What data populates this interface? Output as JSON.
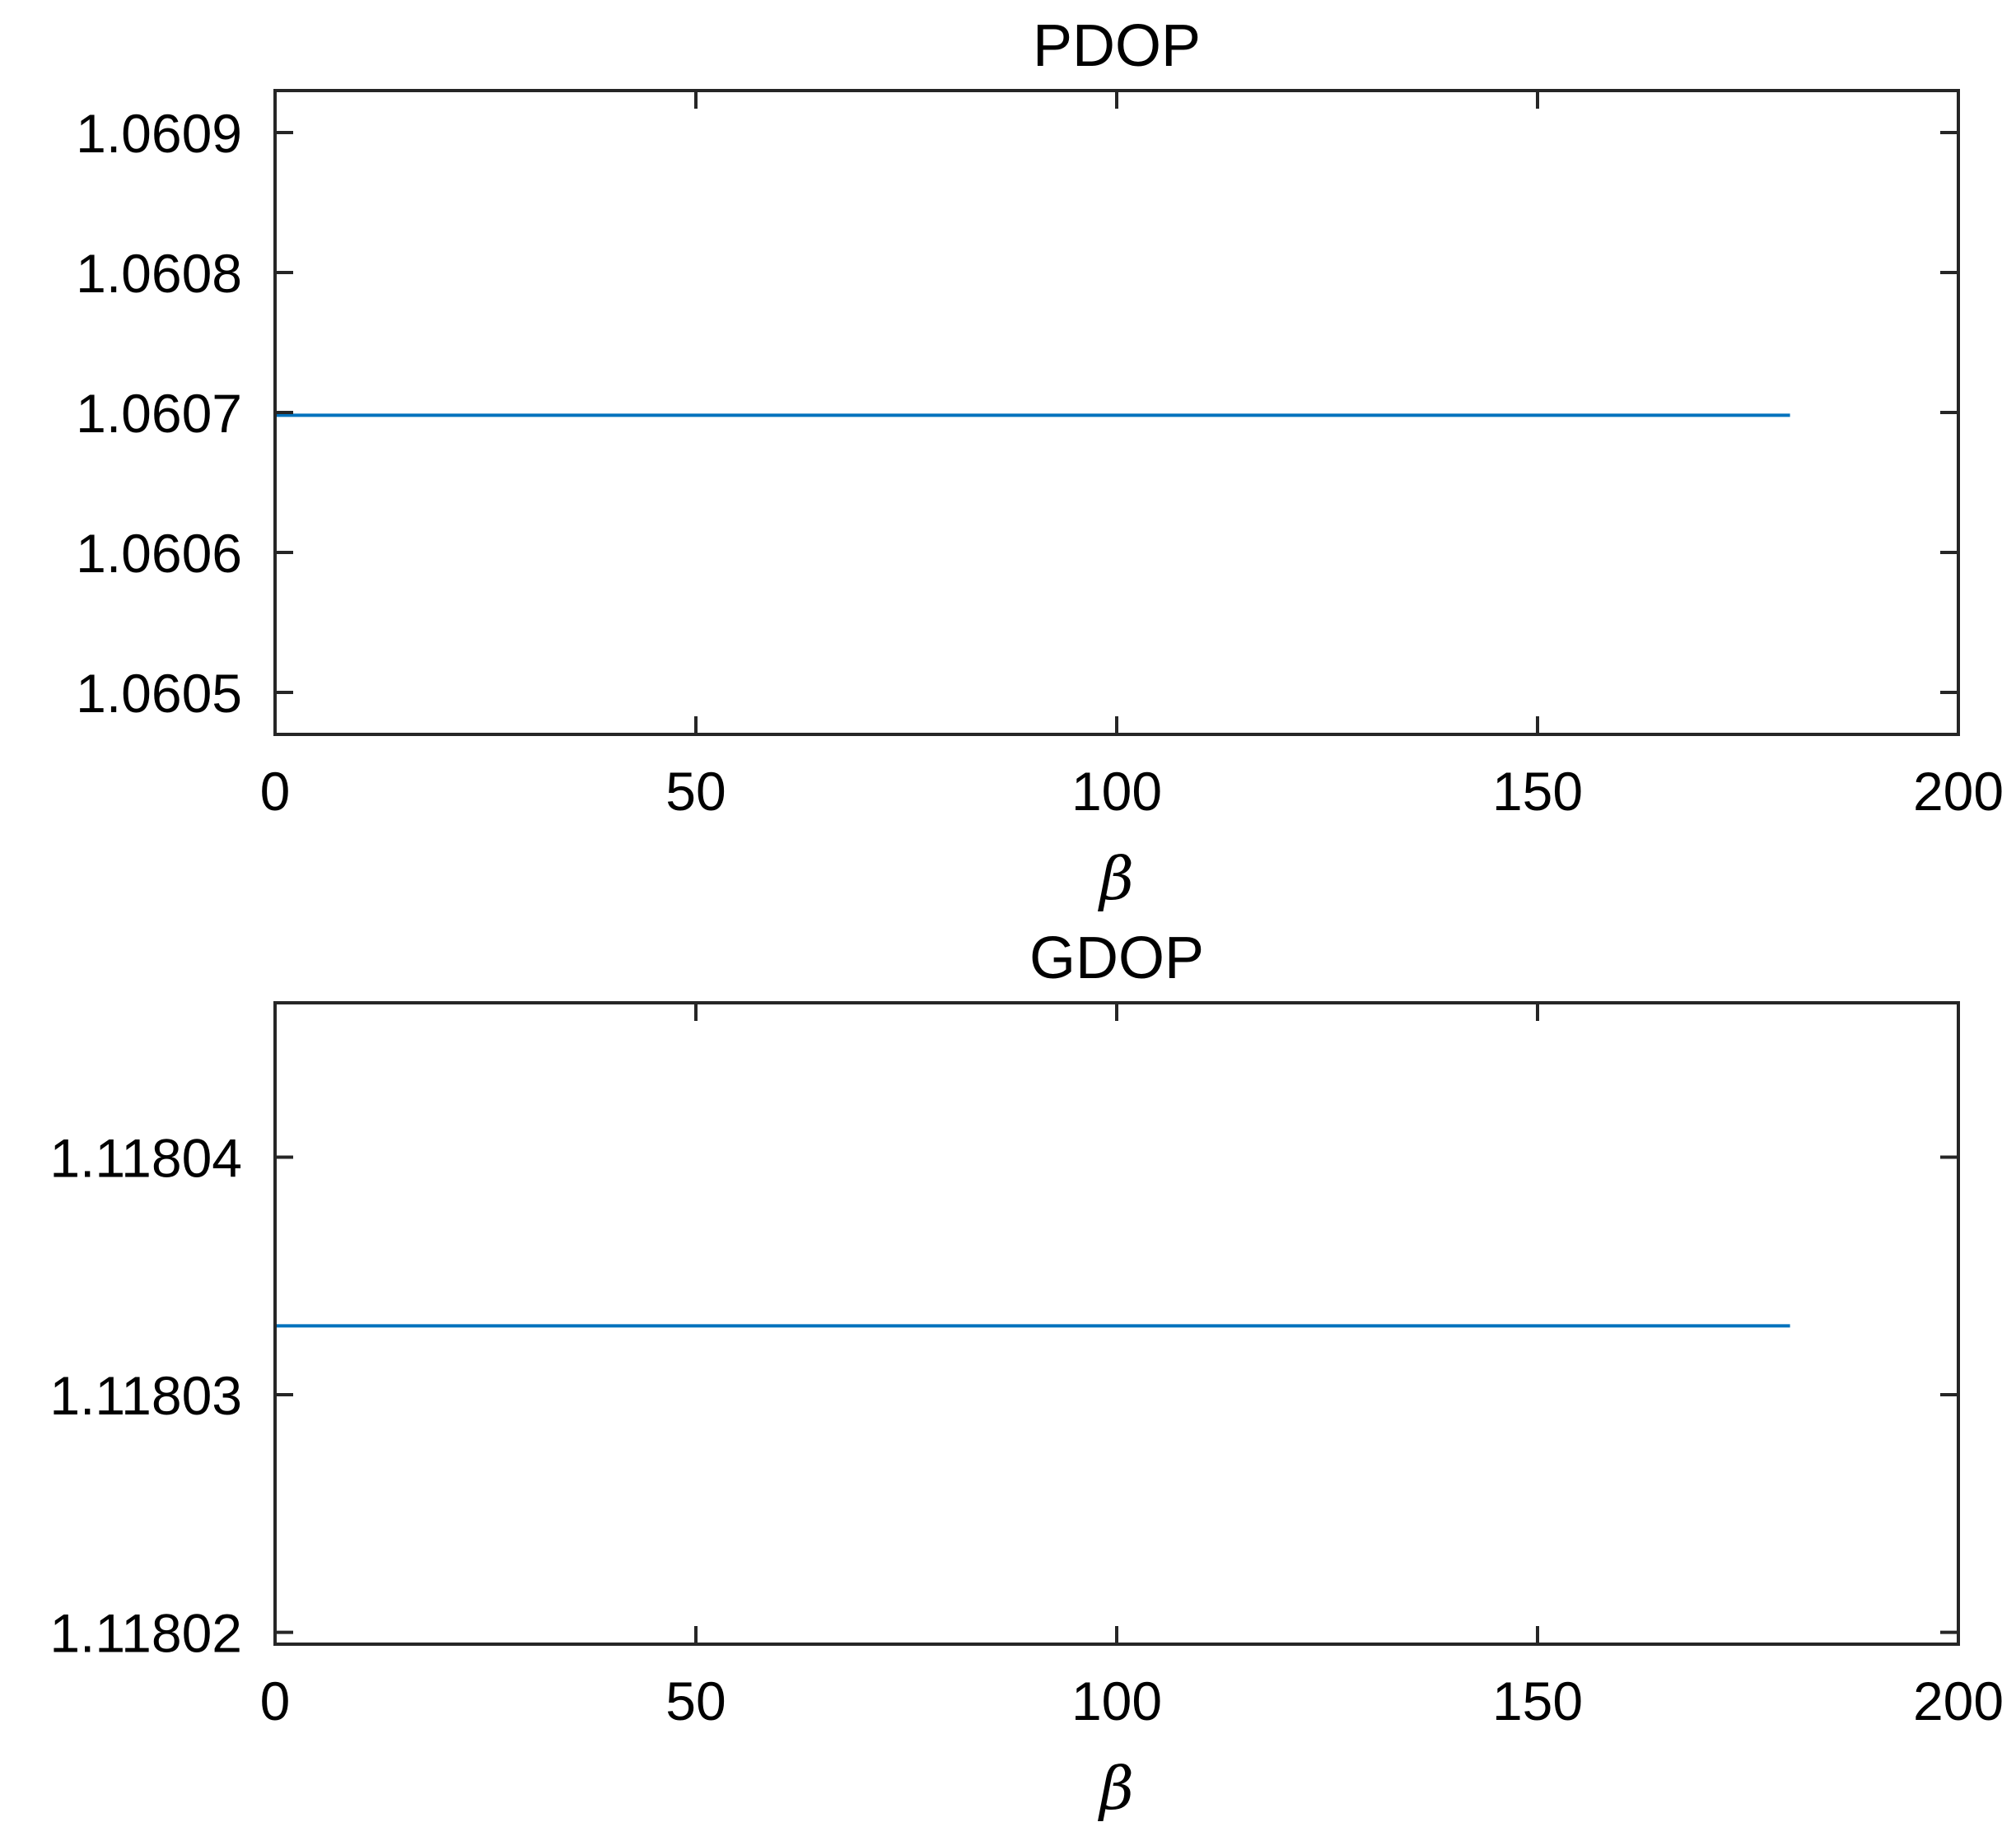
{
  "chart_data": [
    {
      "type": "line",
      "title": "PDOP",
      "xlabel": "β",
      "ylabel": "",
      "xlim": [
        0,
        200
      ],
      "ylim": [
        1.06047,
        1.06093
      ],
      "x_ticks": [
        0,
        50,
        100,
        150,
        200
      ],
      "x_tick_labels": [
        "0",
        "50",
        "100",
        "150",
        "200"
      ],
      "y_ticks": [
        1.0605,
        1.0606,
        1.0607,
        1.0608,
        1.0609
      ],
      "y_tick_labels": [
        "1.0605",
        "1.0606",
        "1.0607",
        "1.0608",
        "1.0609"
      ],
      "grid": false,
      "color": "#0072BD",
      "series": [
        {
          "x": [
            0,
            180
          ],
          "y": [
            1.060698,
            1.060698
          ]
        }
      ]
    },
    {
      "type": "line",
      "title": "GDOP",
      "xlabel": "β",
      "ylabel": "",
      "xlim": [
        0,
        200
      ],
      "ylim": [
        1.1180195,
        1.1180465
      ],
      "x_ticks": [
        0,
        50,
        100,
        150,
        200
      ],
      "x_tick_labels": [
        "0",
        "50",
        "100",
        "150",
        "200"
      ],
      "y_ticks": [
        1.11802,
        1.11803,
        1.11804
      ],
      "y_tick_labels": [
        "1.11802",
        "1.11803",
        "1.11804"
      ],
      "grid": false,
      "color": "#0072BD",
      "series": [
        {
          "x": [
            0,
            180
          ],
          "y": [
            1.1180329,
            1.1180329
          ]
        }
      ]
    }
  ]
}
